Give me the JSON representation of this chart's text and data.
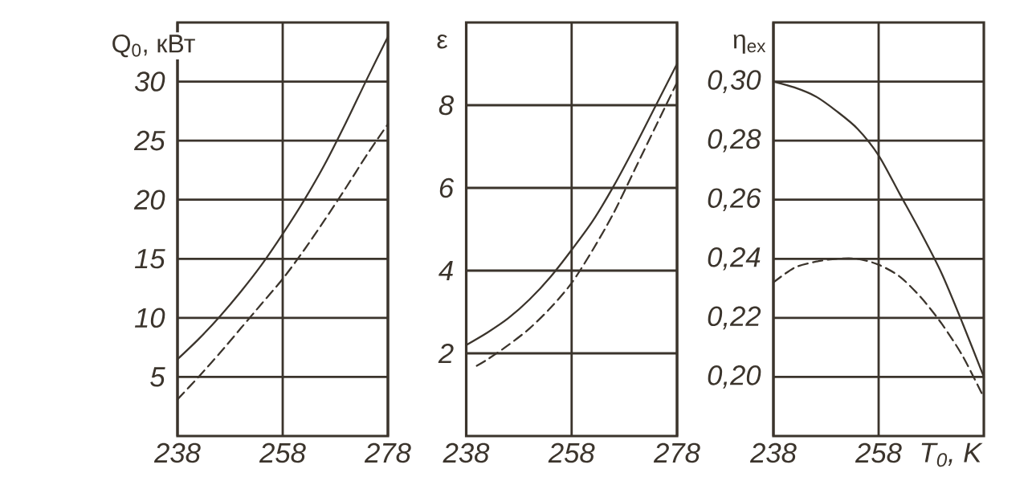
{
  "chart_data": [
    {
      "type": "line",
      "ylabel": "Q$_{0}$, кВт",
      "xlim": [
        238,
        278
      ],
      "xticks": [
        238,
        258,
        278
      ],
      "ylim": [
        0,
        35
      ],
      "yticks": [
        5,
        10,
        15,
        20,
        25,
        30
      ],
      "grid": true,
      "series": [
        {
          "color": "#3b342c",
          "line_style": "solid",
          "x": [
            238,
            242,
            246,
            250,
            254,
            258,
            262,
            266,
            270,
            274,
            278
          ],
          "values": [
            6.5,
            8.2,
            10.1,
            12.2,
            14.5,
            17.1,
            19.9,
            23,
            26.5,
            30.2,
            33.8
          ]
        },
        {
          "color": "#3b342c",
          "line_style": "dashed",
          "x": [
            238,
            242,
            246,
            250,
            254,
            258,
            262,
            266,
            270,
            274,
            278
          ],
          "values": [
            3.1,
            5,
            7,
            9.1,
            11.2,
            13.3,
            15.7,
            18.3,
            21,
            23.8,
            26.4
          ]
        }
      ]
    },
    {
      "type": "line",
      "ylabel": "ε",
      "xlim": [
        238,
        278
      ],
      "xticks": [
        238,
        258,
        278
      ],
      "ylim": [
        0,
        10
      ],
      "yticks": [
        2,
        4,
        6,
        8
      ],
      "grid": true,
      "series": [
        {
          "color": "#3b342c",
          "line_style": "solid",
          "x": [
            238,
            242,
            246,
            250,
            254,
            258,
            262,
            266,
            270,
            274,
            278
          ],
          "values": [
            2.2,
            2.5,
            2.85,
            3.3,
            3.85,
            4.5,
            5.2,
            6.05,
            7,
            8,
            9
          ]
        },
        {
          "color": "#3b342c",
          "line_style": "dashed",
          "x": [
            240,
            242,
            246,
            250,
            254,
            258,
            262,
            266,
            270,
            274,
            278
          ],
          "values": [
            1.7,
            1.85,
            2.2,
            2.6,
            3.1,
            3.7,
            4.5,
            5.4,
            6.45,
            7.5,
            8.55
          ]
        }
      ]
    },
    {
      "type": "line",
      "ylabel": "η$_{ex}$",
      "xlabel": "T$_{0}$, K",
      "xlim": [
        238,
        278
      ],
      "xticks": [
        238,
        258
      ],
      "ylim": [
        0.18,
        0.32
      ],
      "yticks": [
        {
          "value": 0.2,
          "label": "0,20"
        },
        {
          "value": 0.22,
          "label": "0,22"
        },
        {
          "value": 0.24,
          "label": "0,24"
        },
        {
          "value": 0.26,
          "label": "0,26"
        },
        {
          "value": 0.28,
          "label": "0,28"
        },
        {
          "value": 0.3,
          "label": "0,30"
        }
      ],
      "grid": true,
      "series": [
        {
          "color": "#3b342c",
          "line_style": "solid",
          "x": [
            238,
            242,
            246,
            250,
            254,
            258,
            262,
            266,
            270,
            274,
            278
          ],
          "values": [
            0.3,
            0.298,
            0.295,
            0.29,
            0.284,
            0.275,
            0.262,
            0.249,
            0.235,
            0.218,
            0.2
          ]
        },
        {
          "color": "#3b342c",
          "line_style": "dashed",
          "x": [
            238,
            242,
            246,
            250,
            254,
            258,
            262,
            266,
            270,
            274,
            278
          ],
          "values": [
            0.232,
            0.237,
            0.239,
            0.24,
            0.24,
            0.238,
            0.234,
            0.227,
            0.218,
            0.207,
            0.193
          ]
        }
      ]
    }
  ]
}
